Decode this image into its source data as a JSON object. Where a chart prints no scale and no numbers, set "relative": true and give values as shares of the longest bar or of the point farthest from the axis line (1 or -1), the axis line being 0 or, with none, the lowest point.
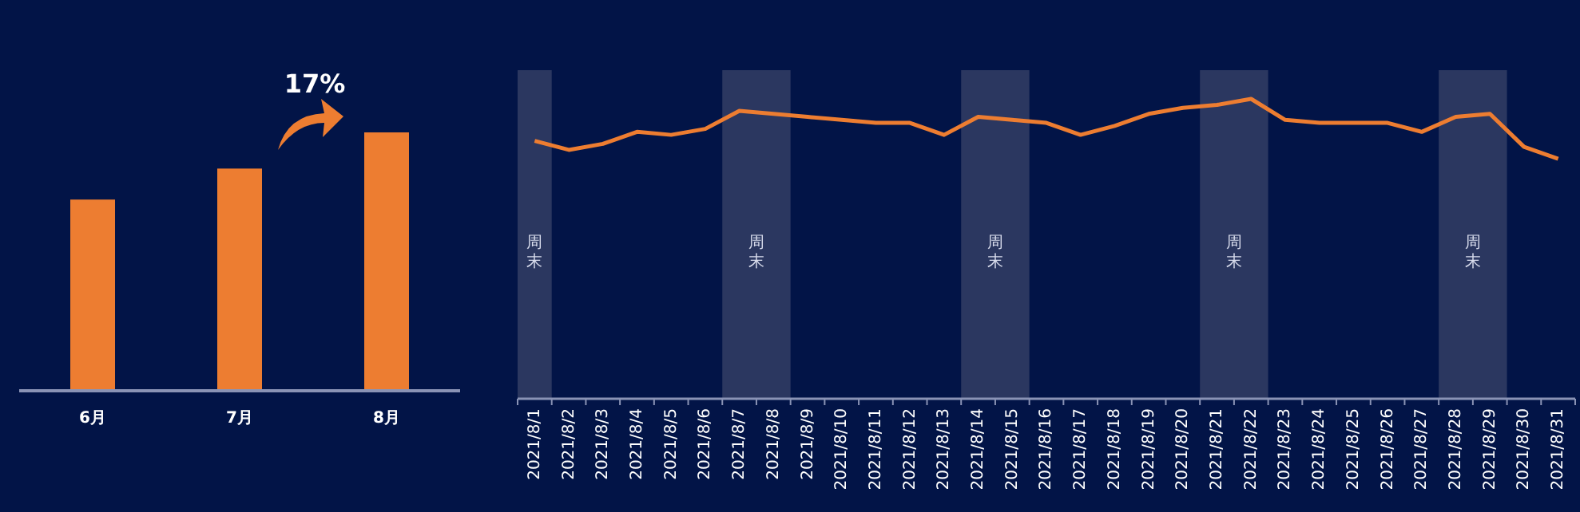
{
  "chart_data": [
    {
      "type": "bar",
      "relative": true,
      "categories": [
        "6月",
        "7月",
        "8月"
      ],
      "values": [
        0.74,
        0.86,
        1
      ],
      "color": "#ed7d31",
      "annotations": [
        "17%"
      ]
    },
    {
      "type": "line",
      "relative": true,
      "categories": [
        "2021/8/1",
        "2021/8/2",
        "2021/8/3",
        "2021/8/4",
        "2021/8/5",
        "2021/8/6",
        "2021/8/7",
        "2021/8/8",
        "2021/8/9",
        "2021/8/10",
        "2021/8/11",
        "2021/8/12",
        "2021/8/13",
        "2021/8/14",
        "2021/8/15",
        "2021/8/16",
        "2021/8/17",
        "2021/8/18",
        "2021/8/19",
        "2021/8/20",
        "2021/8/21",
        "2021/8/22",
        "2021/8/23",
        "2021/8/24",
        "2021/8/25",
        "2021/8/26",
        "2021/8/27",
        "2021/8/28",
        "2021/8/29",
        "2021/8/30",
        "2021/8/31"
      ],
      "series": [
        {
          "color": "#ed7d31",
          "values": [
            0.86,
            0.83,
            0.85,
            0.89,
            0.88,
            0.9,
            0.96,
            0.95,
            0.94,
            0.93,
            0.92,
            0.92,
            0.88,
            0.94,
            0.93,
            0.92,
            0.88,
            0.91,
            0.95,
            0.97,
            0.98,
            1,
            0.93,
            0.92,
            0.92,
            0.92,
            0.89,
            0.94,
            0.95,
            0.84,
            0.8
          ]
        }
      ],
      "marker": "none",
      "bands": [
        {
          "axis": "x",
          "from": "2021/8/1",
          "to": "2021/8/1",
          "label": "周末",
          "color": "#2b3760"
        },
        {
          "axis": "x",
          "from": "2021/8/7",
          "to": "2021/8/8",
          "label": "周末",
          "color": "#2b3760"
        },
        {
          "axis": "x",
          "from": "2021/8/14",
          "to": "2021/8/15",
          "label": "周末",
          "color": "#2b3760"
        },
        {
          "axis": "x",
          "from": "2021/8/21",
          "to": "2021/8/22",
          "label": "周末",
          "color": "#2b3760"
        },
        {
          "axis": "x",
          "from": "2021/8/28",
          "to": "2021/8/29",
          "label": "周末",
          "color": "#2b3760"
        }
      ]
    }
  ]
}
